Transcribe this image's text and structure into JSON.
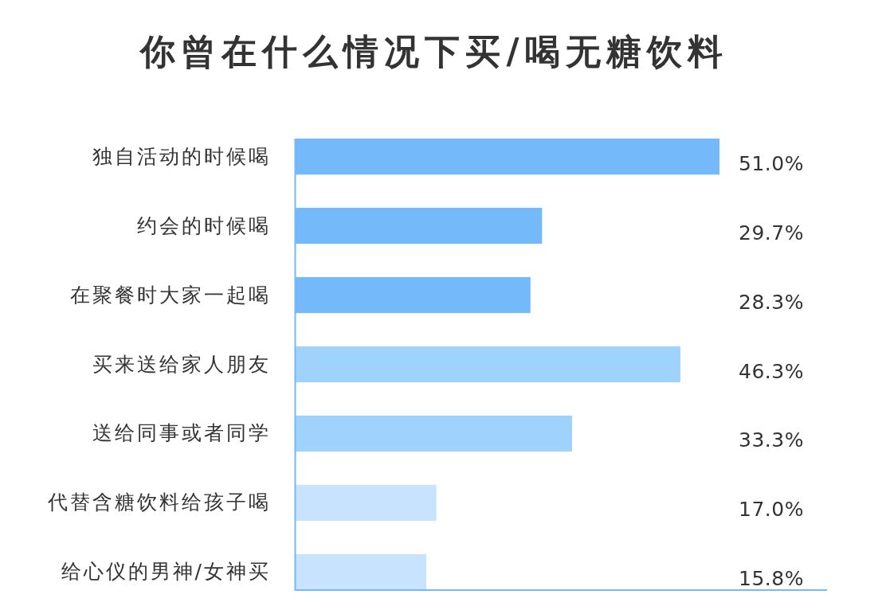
{
  "chart_data": {
    "type": "bar",
    "orientation": "horizontal",
    "title": "你曾在什么情况下买/喝无糖饮料",
    "categories": [
      "独自活动的时候喝",
      "约会的时候喝",
      "在聚餐时大家一起喝",
      "买来送给家人朋友",
      "送给同事或者同学",
      "代替含糖饮料给孩子喝",
      "给心仪的男神/女神买"
    ],
    "values": [
      51.0,
      29.7,
      28.3,
      46.3,
      33.3,
      17.0,
      15.8
    ],
    "value_labels": [
      "51.0%",
      "29.7%",
      "28.3%",
      "46.3%",
      "33.3%",
      "17.0%",
      "15.8%"
    ],
    "colors": [
      "#74b9fa",
      "#74b9fa",
      "#74b9fa",
      "#9fd2fc",
      "#9fd2fc",
      "#c8e3fd",
      "#c8e3fd"
    ]
  }
}
